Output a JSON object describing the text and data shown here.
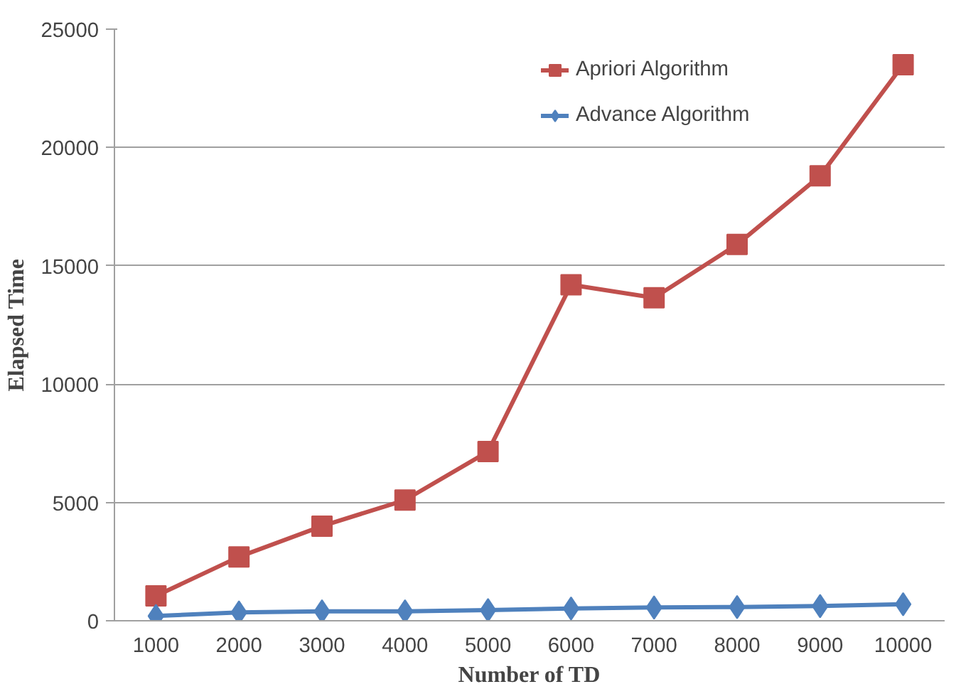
{
  "chart_data": {
    "type": "line",
    "xlabel": "Number of TD",
    "ylabel": "Elapsed Time",
    "categories": [
      "1000",
      "2000",
      "3000",
      "4000",
      "5000",
      "6000",
      "7000",
      "8000",
      "9000",
      "10000"
    ],
    "series": [
      {
        "name": "Apriori Algorithm",
        "color": "#c0504d",
        "marker": "square",
        "values": [
          1050,
          2700,
          4000,
          5100,
          7150,
          14200,
          13650,
          15900,
          18800,
          23500
        ]
      },
      {
        "name": "Advance Algorithm",
        "color": "#4f81bd",
        "marker": "diamond",
        "values": [
          200,
          350,
          400,
          400,
          450,
          520,
          560,
          580,
          620,
          700
        ]
      }
    ],
    "ylim": [
      0,
      25000
    ],
    "yticks": [
      0,
      5000,
      10000,
      15000,
      20000,
      25000
    ],
    "grid": "y",
    "legend": "top right",
    "line_style": "solid"
  }
}
